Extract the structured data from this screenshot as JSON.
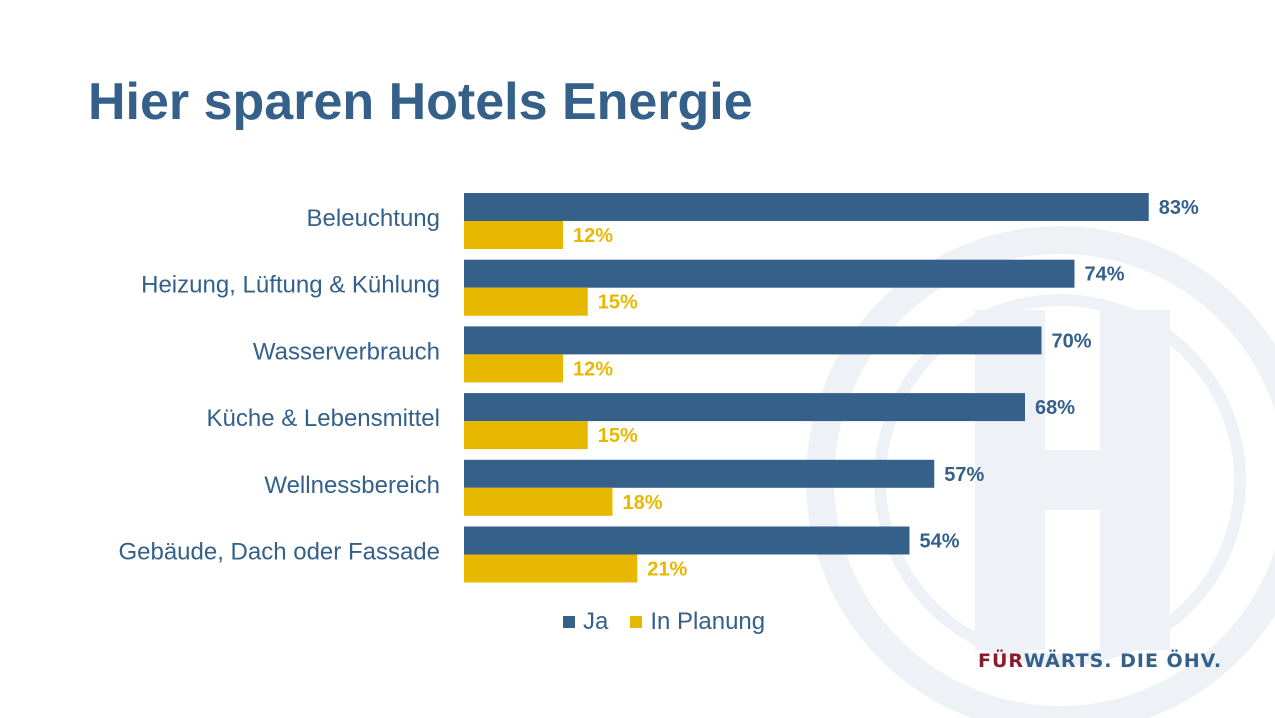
{
  "title": "Hier sparen Hotels Energie",
  "colors": {
    "ja": "#34608a",
    "planung": "#e8b800",
    "watermark": "#eef2f6"
  },
  "legend": {
    "ja": "Ja",
    "planung": "In Planung"
  },
  "brand": {
    "part1": "FÜR",
    "part2": "WÄRTS. DIE ÖHV."
  },
  "chart_data": {
    "type": "bar",
    "orientation": "horizontal",
    "categories": [
      "Beleuchtung",
      "Heizung, Lüftung & Kühlung",
      "Wasserverbrauch",
      "Küche & Lebensmittel",
      "Wellnessbereich",
      "Gebäude, Dach oder Fassade"
    ],
    "series": [
      {
        "name": "Ja",
        "values": [
          83,
          74,
          70,
          68,
          57,
          54
        ],
        "labels": [
          "83%",
          "74%",
          "70%",
          "68%",
          "57%",
          "54%"
        ]
      },
      {
        "name": "In Planung",
        "values": [
          12,
          15,
          12,
          15,
          18,
          21
        ],
        "labels": [
          "12%",
          "15%",
          "12%",
          "15%",
          "18%",
          "21%"
        ]
      }
    ],
    "title": "Hier sparen Hotels Energie",
    "xlim": [
      0,
      100
    ],
    "grid": false,
    "legend_position": "bottom"
  }
}
